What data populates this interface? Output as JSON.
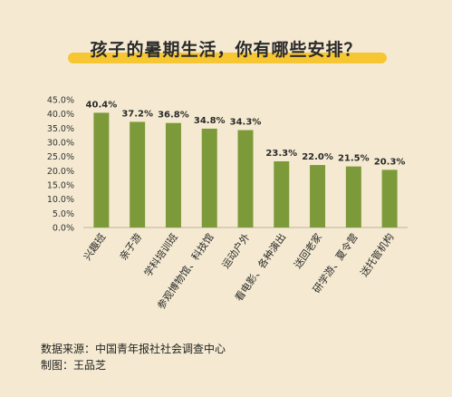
{
  "title": "孩子的暑期生活，你有哪些安排？",
  "footer": {
    "source": "数据来源：中国青年报社社会调查中心",
    "author": "制图：王品芝"
  },
  "colors": {
    "bar": "#7d9a3a",
    "background": "#f5ead1",
    "title_bar": "#f6c633"
  },
  "chart_data": {
    "type": "bar",
    "categories": [
      "兴趣班",
      "亲子游",
      "学科培训班",
      "参观博物馆、科技馆",
      "运动户外",
      "看电影、各种演出",
      "送回老家",
      "研学游、夏令营",
      "送托管机构"
    ],
    "values": [
      40.4,
      37.2,
      36.8,
      34.8,
      34.3,
      23.3,
      22.0,
      21.5,
      20.3
    ],
    "value_labels": [
      "40.4%",
      "37.2%",
      "36.8%",
      "34.8%",
      "34.3%",
      "23.3%",
      "22.0%",
      "21.5%",
      "20.3%"
    ],
    "yticks": [
      "0.0%",
      "5.0%",
      "10.0%",
      "15.0%",
      "20.0%",
      "25.0%",
      "30.0%",
      "35.0%",
      "40.0%",
      "45.0%"
    ],
    "ylim": [
      0,
      45
    ],
    "grid": false,
    "legend": "none"
  }
}
